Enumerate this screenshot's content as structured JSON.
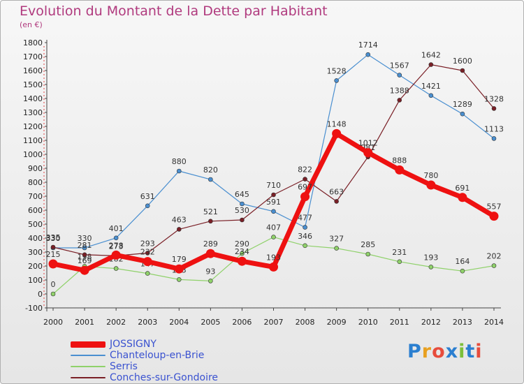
{
  "title": "Evolution du Montant de la Dette par Habitant",
  "unit": "(en €)",
  "logo": {
    "text": "Proxiti",
    "letter_colors": [
      "#2b7fd0",
      "#e8a020",
      "#e74c3c",
      "#2b7fd0",
      "#7cbf3a",
      "#2b7fd0",
      "#e74c3c"
    ]
  },
  "chart_data": {
    "type": "line",
    "title": "Evolution du Montant de la Dette par Habitant",
    "subtitle": "(en €)",
    "xlabel": "",
    "ylabel": "",
    "categories": [
      "2000",
      "2001",
      "2002",
      "2003",
      "2004",
      "2005",
      "2006",
      "2007",
      "2008",
      "2009",
      "2010",
      "2011",
      "2012",
      "2013",
      "2014"
    ],
    "y_ticks": [
      -100,
      0,
      100,
      200,
      300,
      400,
      500,
      600,
      700,
      800,
      900,
      1000,
      1100,
      1200,
      1300,
      1400,
      1500,
      1600,
      1700,
      1800
    ],
    "ylim": [
      -100,
      1800
    ],
    "grid": false,
    "legend_position": "bottom-left",
    "series": [
      {
        "name": "JOSSIGNY",
        "color": "#ee1111",
        "emphasis": true,
        "values": [
          215,
          169,
          278,
          232,
          179,
          289,
          234,
          193,
          697,
          1148,
          1012,
          888,
          780,
          691,
          557
        ],
        "labels": [
          "215",
          "169",
          "278",
          "232",
          "179",
          "289",
          "234",
          "193",
          "697",
          "1148",
          "1012",
          "888",
          "780",
          "691",
          "557"
        ]
      },
      {
        "name": "Chanteloup-en-Brie",
        "color": "#4a8fd0",
        "values": [
          330,
          330,
          401,
          631,
          880,
          820,
          645,
          591,
          477,
          1528,
          1714,
          1567,
          1421,
          1289,
          1113
        ],
        "labels": [
          "330",
          "330",
          "401",
          "631",
          "880",
          "820",
          "645",
          "591",
          "477",
          "1528",
          "1714",
          "1567",
          "1421",
          "1289",
          "1113"
        ]
      },
      {
        "name": "Serris",
        "color": "#8fd16a",
        "values": [
          0,
          198,
          182,
          147,
          103,
          93,
          290,
          407,
          346,
          327,
          285,
          231,
          193,
          164,
          202
        ],
        "labels": [
          "0",
          "198",
          "182",
          "147",
          "103",
          "93",
          "290",
          "407",
          "346",
          "327",
          "285",
          "231",
          "193",
          "164",
          "202"
        ]
      },
      {
        "name": "Conches-sur-Gondoire",
        "color": "#7a1f26",
        "values": [
          335,
          281,
          273,
          293,
          463,
          521,
          530,
          710,
          822,
          663,
          981,
          1388,
          1642,
          1600,
          1328
        ],
        "labels": [
          "335",
          "281",
          "273",
          "293",
          "463",
          "521",
          "530",
          "710",
          "822",
          "663",
          "981",
          "1388",
          "1642",
          "1600",
          "1328"
        ]
      }
    ]
  }
}
